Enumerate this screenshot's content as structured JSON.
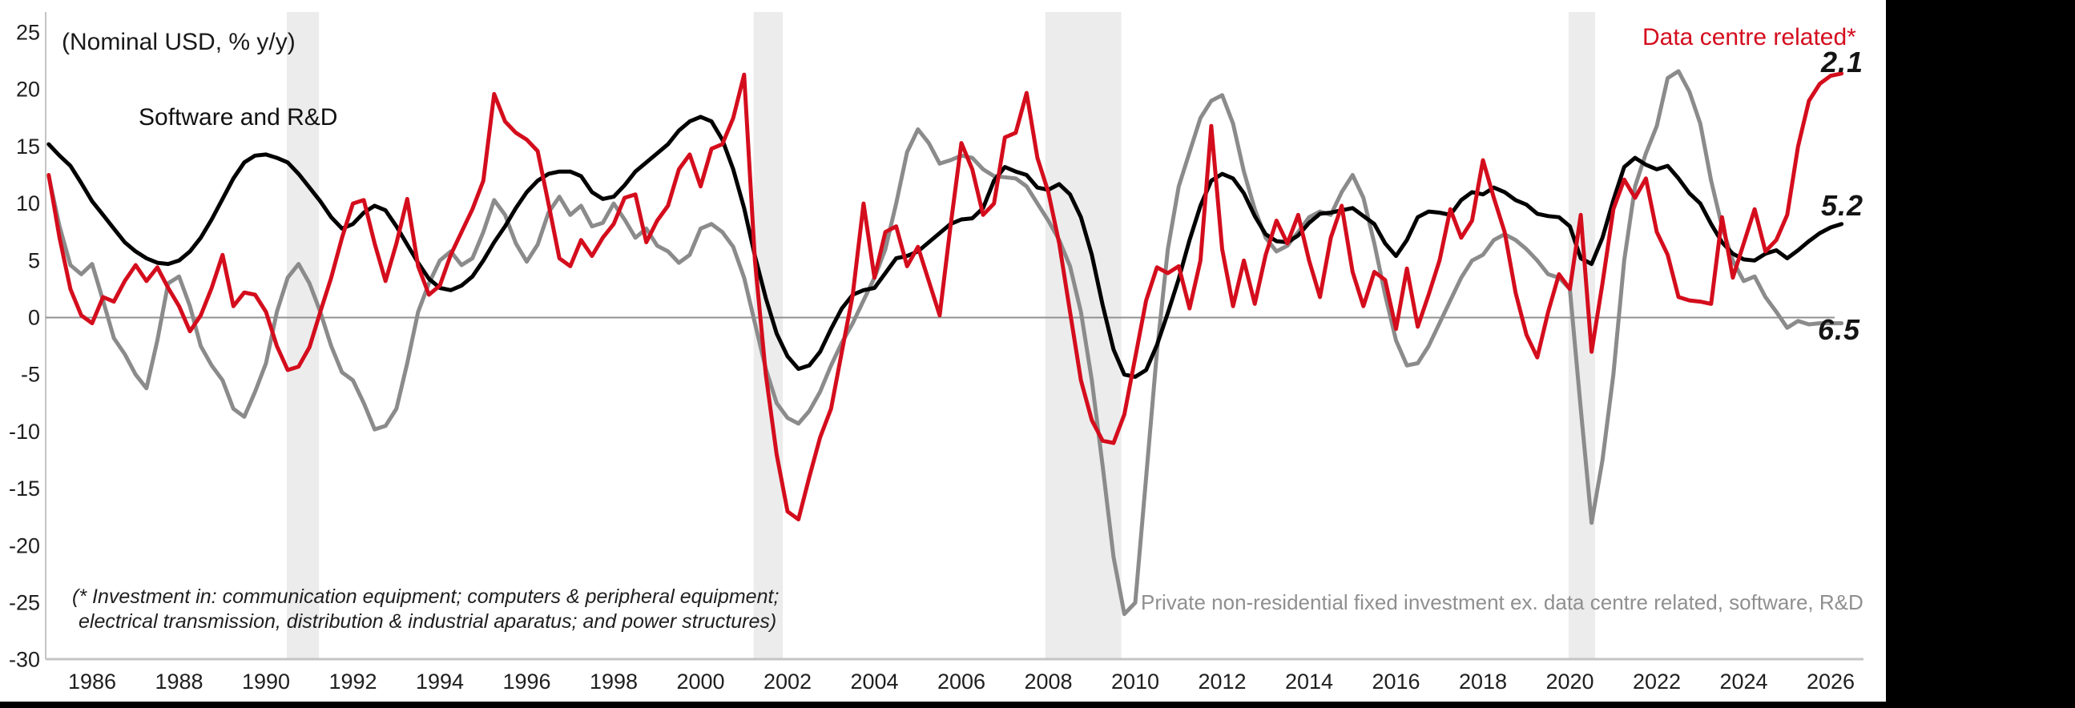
{
  "chart_data": {
    "type": "line",
    "units_note": "(Nominal USD, % y/y)",
    "x_axis": {
      "tick_years": [
        1986,
        1988,
        1990,
        1992,
        1994,
        1996,
        1998,
        2000,
        2002,
        2004,
        2006,
        2008,
        2010,
        2012,
        2014,
        2016,
        2018,
        2020,
        2022,
        2024,
        2026
      ]
    },
    "y_axis": {
      "ticks": [
        25,
        20,
        15,
        10,
        5,
        0,
        -5,
        -10,
        -15,
        -20,
        -25,
        -30
      ],
      "range": [
        -30,
        25
      ]
    },
    "grid": "zero-line-only",
    "recession_bands_years": [
      [
        1990.48,
        1991.22
      ],
      [
        2001.22,
        2001.89
      ],
      [
        2007.93,
        2009.68
      ],
      [
        2019.97,
        2020.58
      ]
    ],
    "x_start": 1985.0,
    "x_step": 0.25,
    "series": [
      {
        "name": "Private non-residential fixed investment ex. data centre related, software, R&D",
        "color": "#8b8b8b",
        "values": [
          12.4,
          8.0,
          4.6,
          3.8,
          4.7,
          1.5,
          -1.8,
          -3.2,
          -5.0,
          -6.2,
          -2.0,
          3.0,
          3.6,
          1.0,
          -2.5,
          -4.2,
          -5.5,
          -8.0,
          -8.7,
          -6.5,
          -4.0,
          0.5,
          3.5,
          4.7,
          3.0,
          0.5,
          -2.5,
          -4.8,
          -5.5,
          -7.5,
          -9.8,
          -9.5,
          -8.0,
          -4.0,
          0.5,
          3.0,
          5.0,
          5.8,
          4.6,
          5.2,
          7.5,
          10.3,
          9.0,
          6.5,
          4.9,
          6.4,
          9.2,
          10.6,
          9.0,
          9.8,
          8.0,
          8.3,
          10.0,
          8.6,
          7.0,
          7.8,
          6.3,
          5.8,
          4.8,
          5.5,
          7.8,
          8.2,
          7.5,
          6.2,
          3.5,
          -0.5,
          -4.5,
          -7.5,
          -8.8,
          -9.3,
          -8.2,
          -6.5,
          -4.2,
          -2.2,
          -0.5,
          1.5,
          3.5,
          6.0,
          10.0,
          14.5,
          16.5,
          15.3,
          13.5,
          13.8,
          14.2,
          14.0,
          13.0,
          12.4,
          12.3,
          12.2,
          11.5,
          10.0,
          8.5,
          6.8,
          4.5,
          0.5,
          -5.5,
          -13.0,
          -21.0,
          -26.0,
          -25.0,
          -14.0,
          -3.0,
          6.0,
          11.5,
          14.5,
          17.5,
          19.0,
          19.5,
          17.0,
          12.8,
          9.5,
          7.0,
          5.8,
          6.3,
          7.5,
          8.8,
          9.3,
          9.0,
          11.0,
          12.5,
          10.5,
          6.5,
          2.0,
          -2.0,
          -4.2,
          -4.0,
          -2.5,
          -0.5,
          1.5,
          3.5,
          5.0,
          5.5,
          6.8,
          7.3,
          6.8,
          6.0,
          5.0,
          3.8,
          3.5,
          2.5,
          -8.0,
          -18.0,
          -12.5,
          -5.0,
          5.0,
          11.5,
          14.4,
          16.8,
          21.0,
          21.6,
          19.8,
          17.0,
          12.0,
          8.0,
          5.0,
          3.2,
          3.6,
          1.8,
          0.5,
          -0.9,
          -0.3,
          -0.6,
          -0.5,
          -0.5,
          -0.5
        ]
      },
      {
        "name": "Software and R&D",
        "color": "#000000",
        "values": [
          15.2,
          14.2,
          13.3,
          11.8,
          10.2,
          9.0,
          7.8,
          6.6,
          5.8,
          5.2,
          4.8,
          4.7,
          5.0,
          5.8,
          7.0,
          8.6,
          10.4,
          12.2,
          13.6,
          14.2,
          14.3,
          14.0,
          13.6,
          12.6,
          11.4,
          10.2,
          8.8,
          7.8,
          8.2,
          9.2,
          9.8,
          9.4,
          8.0,
          6.4,
          4.8,
          3.4,
          2.6,
          2.4,
          2.8,
          3.6,
          5.0,
          6.6,
          8.0,
          9.6,
          11.0,
          12.0,
          12.6,
          12.8,
          12.8,
          12.4,
          11.0,
          10.4,
          10.6,
          11.6,
          12.8,
          13.6,
          14.4,
          15.2,
          16.4,
          17.2,
          17.6,
          17.2,
          15.6,
          13.0,
          9.6,
          5.4,
          1.7,
          -1.4,
          -3.4,
          -4.5,
          -4.2,
          -3.0,
          -1.0,
          0.8,
          2.0,
          2.4,
          2.6,
          3.9,
          5.2,
          5.4,
          5.8,
          6.6,
          7.4,
          8.2,
          8.6,
          8.7,
          9.6,
          12.0,
          13.2,
          12.8,
          12.5,
          11.4,
          11.2,
          11.7,
          10.8,
          8.8,
          5.5,
          1.1,
          -2.8,
          -5.0,
          -5.2,
          -4.6,
          -2.4,
          0.4,
          3.4,
          6.8,
          9.8,
          12.0,
          12.6,
          12.2,
          10.9,
          8.9,
          7.3,
          6.7,
          6.6,
          7.2,
          8.3,
          9.1,
          9.2,
          9.4,
          9.6,
          8.9,
          8.2,
          6.5,
          5.4,
          6.8,
          8.8,
          9.3,
          9.2,
          9.0,
          10.3,
          11.0,
          10.8,
          11.4,
          11.0,
          10.3,
          9.9,
          9.1,
          8.9,
          8.8,
          8.0,
          5.2,
          4.7,
          7.0,
          10.3,
          13.2,
          14.0,
          13.4,
          13.0,
          13.3,
          12.2,
          10.9,
          10.0,
          8.2,
          6.6,
          5.6,
          5.1,
          5.0,
          5.6,
          5.9,
          5.2,
          5.9,
          6.7,
          7.4,
          7.9,
          8.2
        ]
      },
      {
        "name": "Data centre related*",
        "color": "#d40d1d",
        "values": [
          12.5,
          7.0,
          2.5,
          0.2,
          -0.5,
          1.8,
          1.4,
          3.2,
          4.6,
          3.2,
          4.4,
          2.6,
          1.0,
          -1.2,
          0.2,
          2.6,
          5.5,
          1.0,
          2.2,
          2.0,
          0.5,
          -2.5,
          -4.6,
          -4.3,
          -2.6,
          0.5,
          3.5,
          7.0,
          10.0,
          10.3,
          6.5,
          3.2,
          6.5,
          10.4,
          4.5,
          2.0,
          2.8,
          5.5,
          7.5,
          9.5,
          12.0,
          19.6,
          17.2,
          16.2,
          15.6,
          14.6,
          10.0,
          5.2,
          4.5,
          6.8,
          5.4,
          7.0,
          8.2,
          10.5,
          10.8,
          6.6,
          8.5,
          9.8,
          13.0,
          14.3,
          11.5,
          14.8,
          15.2,
          17.5,
          21.3,
          5.0,
          -5.0,
          -12.0,
          -17.0,
          -17.7,
          -14.0,
          -10.5,
          -8.0,
          -3.0,
          2.0,
          10.0,
          3.5,
          7.5,
          8.0,
          4.5,
          6.2,
          3.2,
          0.2,
          8.0,
          15.3,
          13.0,
          9.0,
          10.0,
          15.8,
          16.2,
          19.7,
          14.0,
          11.0,
          6.5,
          0.5,
          -5.5,
          -9.0,
          -10.8,
          -11.0,
          -8.5,
          -3.5,
          1.5,
          4.4,
          3.9,
          4.5,
          0.8,
          5.0,
          16.8,
          6.0,
          1.0,
          5.0,
          1.2,
          5.5,
          8.5,
          6.5,
          9.0,
          5.0,
          1.8,
          7.0,
          9.8,
          4.0,
          1.0,
          4.0,
          3.3,
          -1.0,
          4.3,
          -0.8,
          2.0,
          5.0,
          9.5,
          7.0,
          8.5,
          13.8,
          10.5,
          7.5,
          2.2,
          -1.5,
          -3.5,
          0.5,
          3.8,
          2.5,
          9.0,
          -3.0,
          3.0,
          9.5,
          12.1,
          10.5,
          12.2,
          7.5,
          5.5,
          1.8,
          1.5,
          1.4,
          1.2,
          8.8,
          3.5,
          6.5,
          9.5,
          5.8,
          6.8,
          9.0,
          15.0,
          19.0,
          20.5,
          21.2,
          21.4
        ]
      }
    ],
    "end_labels": [
      {
        "text": "2.1",
        "series": "Data centre related*"
      },
      {
        "text": "5.2",
        "series": "Software and R&D"
      },
      {
        "text": "6.5",
        "series": "Private non-residential fixed investment ex. data centre related, software, R&D"
      }
    ]
  },
  "annotations": {
    "units_note": "(Nominal USD, % y/y)",
    "label_software": "Software and R&D",
    "label_datacentre": "Data centre related*",
    "label_private": "Private non-residential fixed investment ex. data centre related, software, R&D",
    "footnote_line1": "(* Investment in: communication equipment; computers & peripheral equipment;",
    "footnote_line2": "electrical transmission, distribution & industrial aparatus; and power structures)",
    "end_label_red": "2.1",
    "end_label_black": "5.2",
    "end_label_gray": "6.5"
  },
  "colors": {
    "red": "#d40d1d",
    "black": "#000000",
    "gray_line": "#8b8b8b",
    "gray_label": "#8f8f8f",
    "band": "#ececec",
    "axis": "#c4c4c4",
    "zero_line": "#909090",
    "tick_text": "#1f1f1f"
  }
}
